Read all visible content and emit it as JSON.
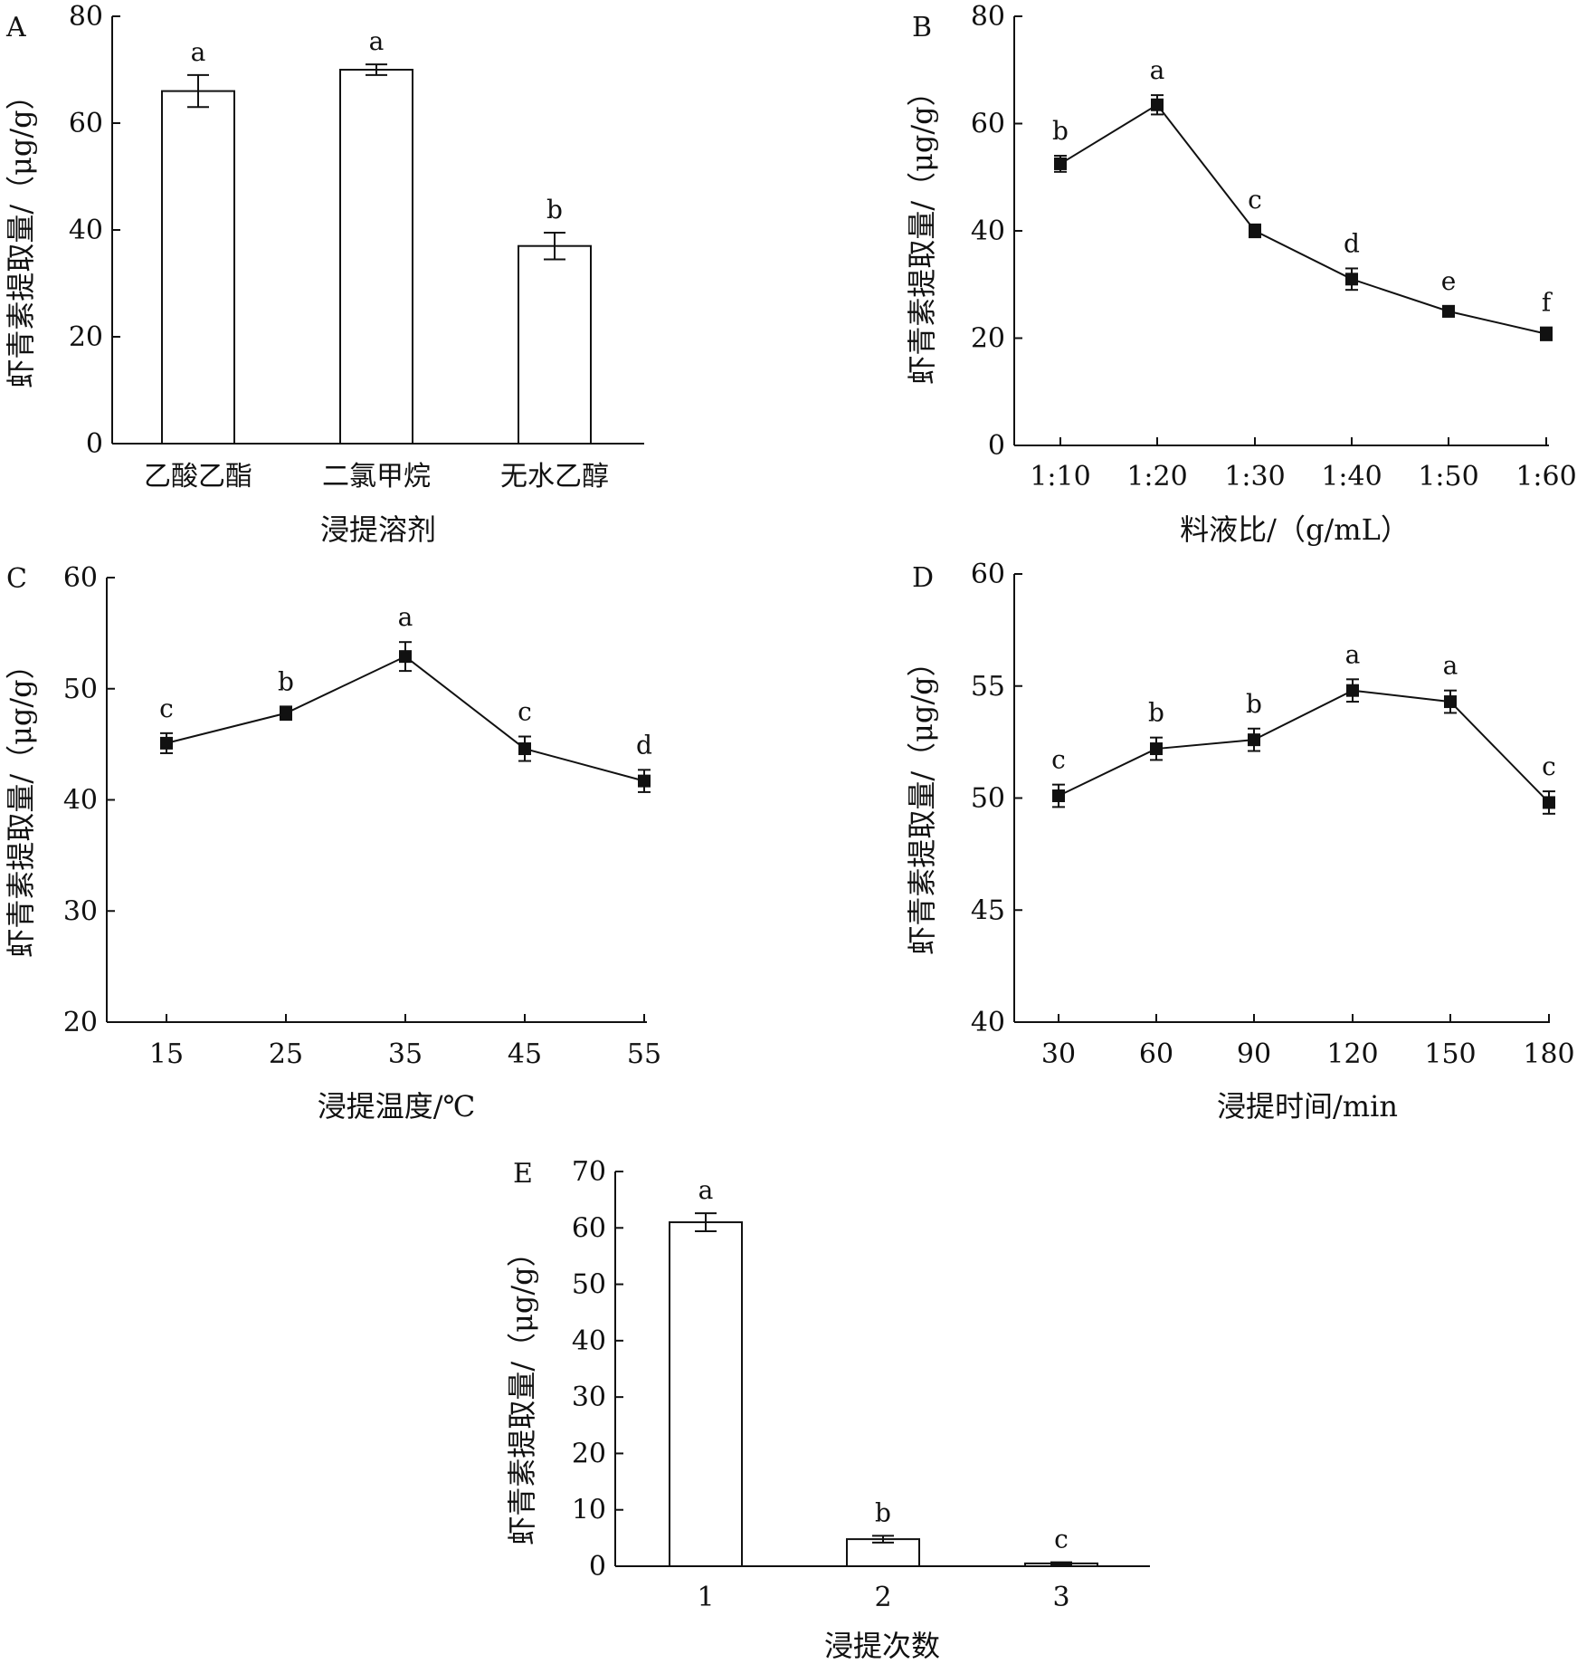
{
  "figure": {
    "colors": {
      "ink": "#111111",
      "bar_fill": "#ffffff",
      "background": "#ffffff"
    }
  },
  "chart_data": [
    {
      "id": "A",
      "panel_label": "A",
      "type": "bar",
      "xlabel": "浸提溶剂",
      "ylabel": "虾青素提取量/（μg/g）",
      "categories": [
        "乙酸乙酯",
        "二氯甲烷",
        "无水乙醇"
      ],
      "values": [
        66,
        70,
        37
      ],
      "errors": [
        3.0,
        1.0,
        2.5
      ],
      "significance": [
        "a",
        "a",
        "b"
      ],
      "ylim": [
        0,
        80
      ],
      "yticks": [
        0,
        20,
        40,
        60,
        80
      ],
      "grid": false
    },
    {
      "id": "B",
      "panel_label": "B",
      "type": "line",
      "xlabel": "料液比/（g/mL）",
      "ylabel": "虾青素提取量/（μg/g）",
      "categories": [
        "1:10",
        "1:20",
        "1:30",
        "1:40",
        "1:50",
        "1:60"
      ],
      "values": [
        52.5,
        63.5,
        40,
        31,
        25,
        20.8
      ],
      "errors": [
        1.5,
        1.8,
        1.2,
        2.0,
        1.0,
        1.2
      ],
      "significance": [
        "b",
        "a",
        "c",
        "d",
        "e",
        "f"
      ],
      "ylim": [
        0,
        80
      ],
      "yticks": [
        0,
        20,
        40,
        60,
        80
      ],
      "grid": false
    },
    {
      "id": "C",
      "panel_label": "C",
      "type": "line",
      "xlabel": "浸提温度/℃",
      "ylabel": "虾青素提取量/（μg/g）",
      "categories": [
        "15",
        "25",
        "35",
        "45",
        "55"
      ],
      "values": [
        45.1,
        47.8,
        52.9,
        44.6,
        41.7
      ],
      "errors": [
        0.9,
        0.6,
        1.3,
        1.1,
        1.0
      ],
      "significance": [
        "c",
        "b",
        "a",
        "c",
        "d"
      ],
      "ylim": [
        20,
        60
      ],
      "yticks": [
        20,
        30,
        40,
        50,
        60
      ],
      "grid": false
    },
    {
      "id": "D",
      "panel_label": "D",
      "type": "line",
      "xlabel": "浸提时间/min",
      "ylabel": "虾青素提取量/（μg/g）",
      "categories": [
        "30",
        "60",
        "90",
        "120",
        "150",
        "180"
      ],
      "values": [
        50.1,
        52.2,
        52.6,
        54.8,
        54.3,
        49.8
      ],
      "errors": [
        0.5,
        0.5,
        0.5,
        0.5,
        0.5,
        0.5
      ],
      "significance": [
        "c",
        "b",
        "b",
        "a",
        "a",
        "c"
      ],
      "ylim": [
        40,
        60
      ],
      "yticks": [
        40,
        45,
        50,
        55,
        60
      ],
      "grid": false
    },
    {
      "id": "E",
      "panel_label": "E",
      "type": "bar",
      "xlabel": "浸提次数",
      "ylabel": "虾青素提取量/（μg/g）",
      "categories": [
        "1",
        "2",
        "3"
      ],
      "values": [
        61,
        4.8,
        0.5
      ],
      "errors": [
        1.6,
        0.6,
        0.2
      ],
      "significance": [
        "a",
        "b",
        "c"
      ],
      "ylim": [
        0,
        70
      ],
      "yticks": [
        0,
        10,
        20,
        30,
        40,
        50,
        60,
        70
      ],
      "grid": false
    }
  ]
}
